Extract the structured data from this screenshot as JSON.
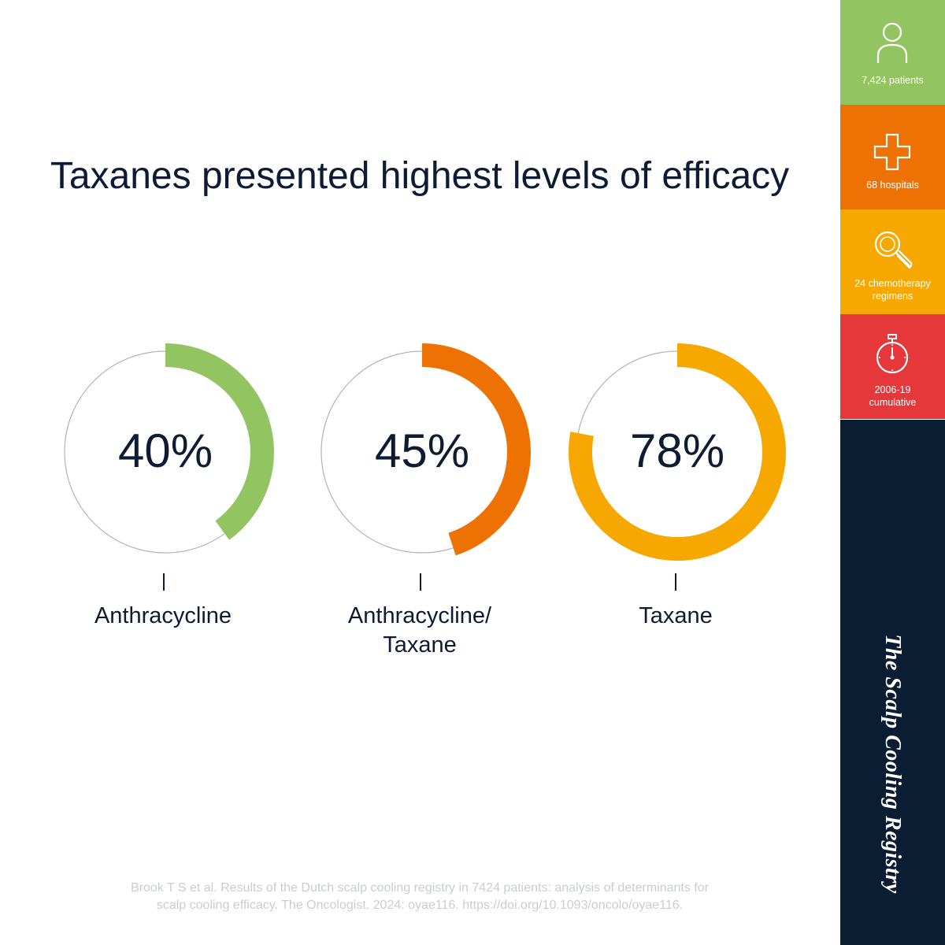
{
  "title": "Taxanes presented highest levels of efficacy",
  "chart_data": {
    "type": "donut",
    "categories": [
      "Anthracycline",
      "Anthracycline/ Taxane",
      "Taxane"
    ],
    "values": [
      40,
      45,
      78
    ],
    "value_labels": [
      "40%",
      "45%",
      "78%"
    ],
    "colors": [
      "#93c462",
      "#ee7203",
      "#f6a800"
    ],
    "ylim": [
      0,
      100
    ]
  },
  "labels": {
    "donut1_pct": "40%",
    "donut2_pct": "45%",
    "donut3_pct": "78%",
    "cat1": "Anthracycline",
    "cat2_line1": "Anthracycline/",
    "cat2_line2": "Taxane",
    "cat3": "Taxane"
  },
  "footnote": {
    "line1": "Brook T S et al. Results of the Dutch scalp cooling registry in 7424 patients: analysis of determinants for",
    "line2": "scalp cooling efficacy. The Oncologist. 2024: oyae116. https://doi.org/10.1093/oncolo/oyae116."
  },
  "sidebar": {
    "tiles": [
      {
        "icon": "person-icon",
        "label": "7,424 patients",
        "color": "#93c462"
      },
      {
        "icon": "medical-cross-icon",
        "label": "68 hospitals",
        "color": "#ee7203"
      },
      {
        "icon": "magnifier-icon",
        "label_line1": "24 chemotherapy",
        "label_line2": "regimens",
        "color": "#f6a800"
      },
      {
        "icon": "stopwatch-icon",
        "label_line1": "2006-19",
        "label_line2": "cumulative",
        "color": "#e6373a"
      }
    ],
    "brand": "The Scalp Cooling Registry",
    "brand_color": "#0b1d33"
  }
}
